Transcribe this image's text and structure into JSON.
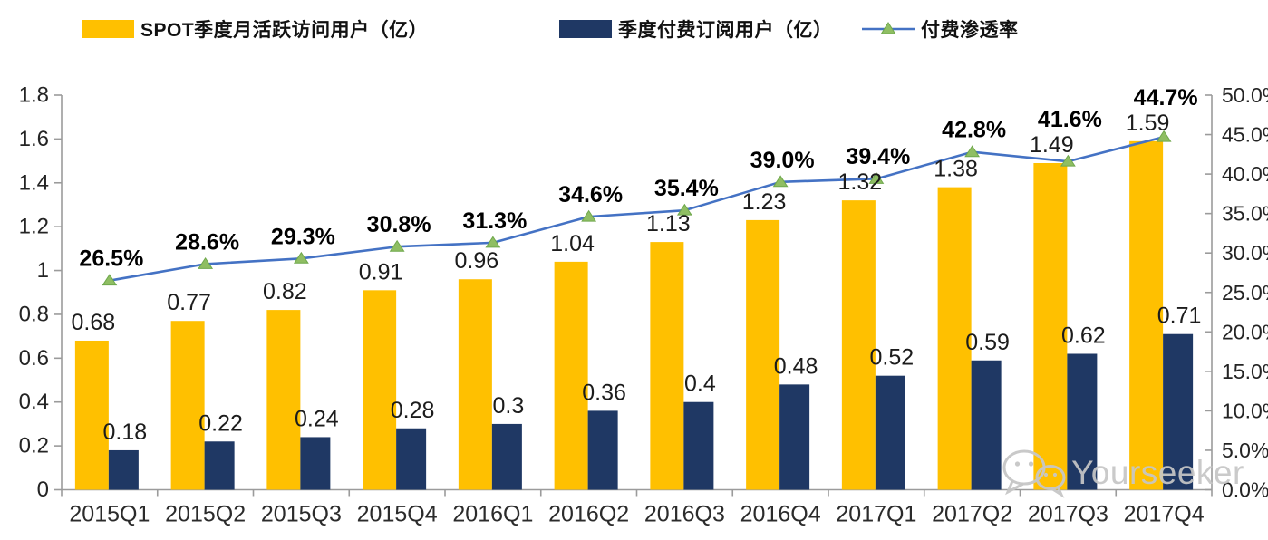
{
  "chart_data": {
    "type": "combo",
    "title": "",
    "categories": [
      "2015Q1",
      "2015Q2",
      "2015Q3",
      "2015Q4",
      "2016Q1",
      "2016Q2",
      "2016Q3",
      "2016Q4",
      "2017Q1",
      "2017Q2",
      "2017Q3",
      "2017Q4"
    ],
    "series": [
      {
        "name": "SPOT季度月活跃访问用户（亿）",
        "type": "bar",
        "axis": "left",
        "color": "#FFC000",
        "values": [
          0.68,
          0.77,
          0.82,
          0.91,
          0.96,
          1.04,
          1.13,
          1.23,
          1.32,
          1.38,
          1.49,
          1.59
        ],
        "labels": [
          "0.68",
          "0.77",
          "0.82",
          "0.91",
          "0.96",
          "1.04",
          "1.13",
          "1.23",
          "1.32",
          "1.38",
          "1.49",
          "1.59"
        ]
      },
      {
        "name": "季度付费订阅用户（亿）",
        "type": "bar",
        "axis": "left",
        "color": "#1F3864",
        "values": [
          0.18,
          0.22,
          0.24,
          0.28,
          0.3,
          0.36,
          0.4,
          0.48,
          0.52,
          0.59,
          0.62,
          0.71
        ],
        "labels": [
          "0.18",
          "0.22",
          "0.24",
          "0.28",
          "0.3",
          "0.36",
          "0.4",
          "0.48",
          "0.52",
          "0.59",
          "0.62",
          "0.71"
        ]
      },
      {
        "name": "付费渗透率",
        "type": "line",
        "axis": "right",
        "color": "#4472C4",
        "marker": "triangle",
        "marker_fill": "#8FBE63",
        "marker_stroke": "#6FA84C",
        "values": [
          26.5,
          28.6,
          29.3,
          30.8,
          31.3,
          34.6,
          35.4,
          39.0,
          39.4,
          42.8,
          41.6,
          44.7
        ],
        "labels": [
          "26.5%",
          "28.6%",
          "29.3%",
          "30.8%",
          "31.3%",
          "34.6%",
          "35.4%",
          "39.0%",
          "39.4%",
          "42.8%",
          "41.6%",
          "44.7%"
        ]
      }
    ],
    "left_axis": {
      "min": 0,
      "max": 1.8,
      "step": 0.2,
      "tick_labels": [
        "0",
        "0.2",
        "0.4",
        "0.6",
        "0.8",
        "1",
        "1.2",
        "1.4",
        "1.6",
        "1.8"
      ]
    },
    "right_axis": {
      "min": 0,
      "max": 50,
      "step": 5,
      "tick_labels": [
        "0.0%",
        "5.0%",
        "10.0%",
        "15.0%",
        "20.0%",
        "25.0%",
        "30.0%",
        "35.0%",
        "40.0%",
        "45.0%",
        "50.0%"
      ]
    },
    "grid": false,
    "legend_position": "top",
    "axis_color": "#9b9b9b",
    "label_color": "#1c1c1c"
  },
  "watermark": {
    "text": "Yourseeker"
  }
}
